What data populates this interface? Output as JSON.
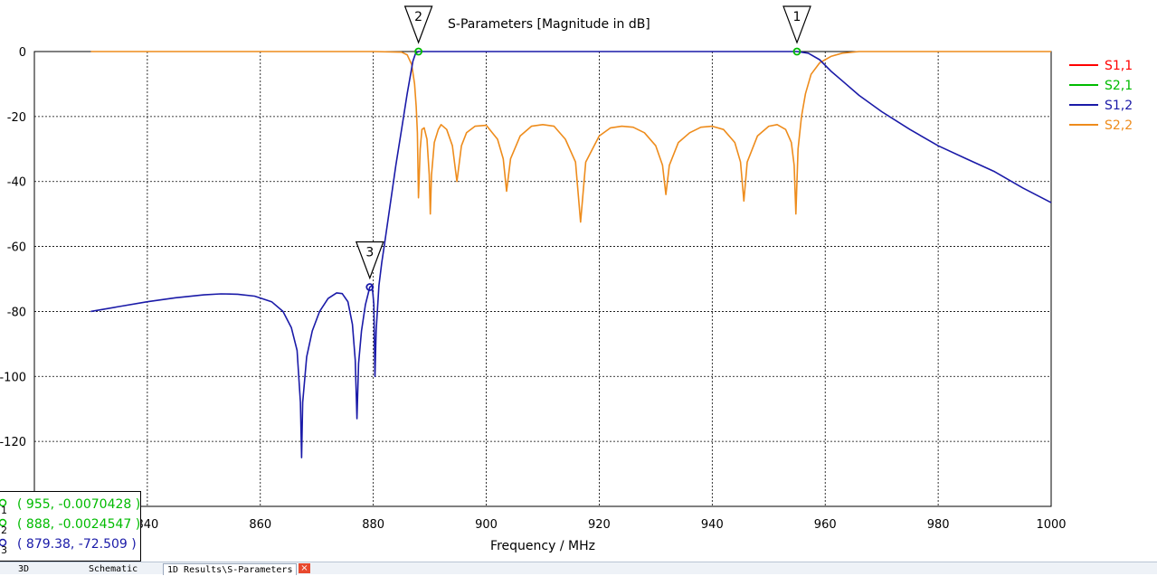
{
  "chart_data": {
    "type": "line",
    "title": "S-Parameters [Magnitude in dB]",
    "xlabel": "Frequency / MHz",
    "ylabel": "",
    "xlim": [
      820,
      1000
    ],
    "ylim": [
      -140,
      0
    ],
    "x_ticks": [
      "840",
      "860",
      "880",
      "900",
      "920",
      "940",
      "960",
      "980",
      "1000"
    ],
    "y_ticks": [
      "0",
      "-20",
      "-40",
      "-60",
      "-80",
      "-100",
      "-120"
    ],
    "grid": true,
    "legend_position": "right",
    "series": [
      {
        "name": "S1,1",
        "color": "#ff0000",
        "points": []
      },
      {
        "name": "S2,1",
        "color": "#00bb00",
        "points": []
      },
      {
        "name": "S1,2",
        "color": "#1a1aa8",
        "points": [
          [
            830,
            -80
          ],
          [
            835,
            -78.5
          ],
          [
            840,
            -77
          ],
          [
            845,
            -75.8
          ],
          [
            850,
            -74.9
          ],
          [
            853,
            -74.6
          ],
          [
            856,
            -74.7
          ],
          [
            859,
            -75.3
          ],
          [
            862,
            -77
          ],
          [
            864,
            -80
          ],
          [
            865.5,
            -85
          ],
          [
            866.5,
            -92
          ],
          [
            867.1,
            -108
          ],
          [
            867.3,
            -125
          ],
          [
            867.5,
            -108
          ],
          [
            868.2,
            -94
          ],
          [
            869.2,
            -86
          ],
          [
            870.5,
            -80
          ],
          [
            872,
            -76
          ],
          [
            873.5,
            -74.3
          ],
          [
            874.5,
            -74.5
          ],
          [
            875.5,
            -77
          ],
          [
            876.3,
            -84
          ],
          [
            876.8,
            -95
          ],
          [
            877.1,
            -113
          ],
          [
            877.4,
            -96
          ],
          [
            877.9,
            -86
          ],
          [
            878.6,
            -78
          ],
          [
            879.38,
            -72.5
          ],
          [
            879.8,
            -72
          ],
          [
            880.1,
            -78
          ],
          [
            880.3,
            -100
          ],
          [
            880.5,
            -86
          ],
          [
            881,
            -72
          ],
          [
            881.5,
            -65
          ],
          [
            882,
            -59
          ],
          [
            883,
            -47
          ],
          [
            884,
            -35
          ],
          [
            885,
            -24
          ],
          [
            886,
            -13
          ],
          [
            887,
            -3
          ],
          [
            887.5,
            -0.5
          ],
          [
            888,
            0
          ],
          [
            955,
            0
          ],
          [
            957,
            -0.5
          ],
          [
            959,
            -2.5
          ],
          [
            961,
            -6
          ],
          [
            963,
            -9
          ],
          [
            966,
            -13.5
          ],
          [
            970,
            -18.5
          ],
          [
            975,
            -24
          ],
          [
            980,
            -29
          ],
          [
            985,
            -33
          ],
          [
            990,
            -37
          ],
          [
            995,
            -42
          ],
          [
            1000,
            -46.5
          ]
        ]
      },
      {
        "name": "S2,2",
        "color": "#ee8c1c",
        "points": [
          [
            830,
            0
          ],
          [
            880,
            0
          ],
          [
            885,
            -0.2
          ],
          [
            886,
            -1
          ],
          [
            886.8,
            -4
          ],
          [
            887.3,
            -10
          ],
          [
            887.6,
            -17
          ],
          [
            887.8,
            -25
          ],
          [
            888,
            -45
          ],
          [
            888.3,
            -30
          ],
          [
            888.6,
            -24
          ],
          [
            889,
            -23.5
          ],
          [
            889.5,
            -27
          ],
          [
            889.9,
            -38
          ],
          [
            890.1,
            -50
          ],
          [
            890.3,
            -38
          ],
          [
            890.8,
            -28
          ],
          [
            891.5,
            -24
          ],
          [
            892,
            -22.5
          ],
          [
            893,
            -24
          ],
          [
            894,
            -29
          ],
          [
            894.8,
            -40
          ],
          [
            895.6,
            -29
          ],
          [
            896.5,
            -25
          ],
          [
            898,
            -23
          ],
          [
            900,
            -22.7
          ],
          [
            902,
            -27
          ],
          [
            903,
            -33
          ],
          [
            903.6,
            -43
          ],
          [
            904.3,
            -33
          ],
          [
            906,
            -26
          ],
          [
            908,
            -23
          ],
          [
            910,
            -22.5
          ],
          [
            912,
            -23
          ],
          [
            914,
            -27
          ],
          [
            915.8,
            -34
          ],
          [
            916.7,
            -52.5
          ],
          [
            917.6,
            -34
          ],
          [
            920,
            -26
          ],
          [
            922,
            -23.5
          ],
          [
            924,
            -23
          ],
          [
            926,
            -23.3
          ],
          [
            928,
            -25
          ],
          [
            930,
            -29
          ],
          [
            931.2,
            -35
          ],
          [
            931.8,
            -44
          ],
          [
            932.4,
            -35
          ],
          [
            934,
            -28
          ],
          [
            936,
            -25
          ],
          [
            938,
            -23.3
          ],
          [
            940,
            -23
          ],
          [
            942,
            -24
          ],
          [
            944,
            -28
          ],
          [
            945,
            -34
          ],
          [
            945.6,
            -46
          ],
          [
            946.2,
            -34
          ],
          [
            948,
            -26
          ],
          [
            950,
            -23
          ],
          [
            951.5,
            -22.5
          ],
          [
            953,
            -24
          ],
          [
            954,
            -28
          ],
          [
            954.5,
            -35
          ],
          [
            954.8,
            -50
          ],
          [
            955.2,
            -30
          ],
          [
            955.8,
            -20
          ],
          [
            956.5,
            -13
          ],
          [
            957.5,
            -7
          ],
          [
            959,
            -3.5
          ],
          [
            961,
            -1.5
          ],
          [
            963,
            -0.5
          ],
          [
            966,
            0
          ],
          [
            1000,
            0
          ]
        ]
      }
    ],
    "markers": [
      {
        "label": "1",
        "x": 955,
        "y": -0.0070428,
        "color": "#00bb00"
      },
      {
        "label": "2",
        "x": 888,
        "y": -0.0024547,
        "color": "#00bb00"
      },
      {
        "label": "3",
        "x": 879.38,
        "y": -72.509,
        "color": "#1a1aa8"
      }
    ]
  },
  "readout": [
    {
      "num": "1",
      "text": "( 955, -0.0070428 )",
      "color": "#00bb00"
    },
    {
      "num": "2",
      "text": "( 888, -0.0024547 )",
      "color": "#00bb00"
    },
    {
      "num": "3",
      "text": "( 879.38, -72.509 )",
      "color": "#1a1aa8"
    }
  ],
  "tabs": {
    "tab1": "3D",
    "tab2": "Schematic",
    "tab3": "1D Results\\S-Parameters",
    "close": "×"
  }
}
